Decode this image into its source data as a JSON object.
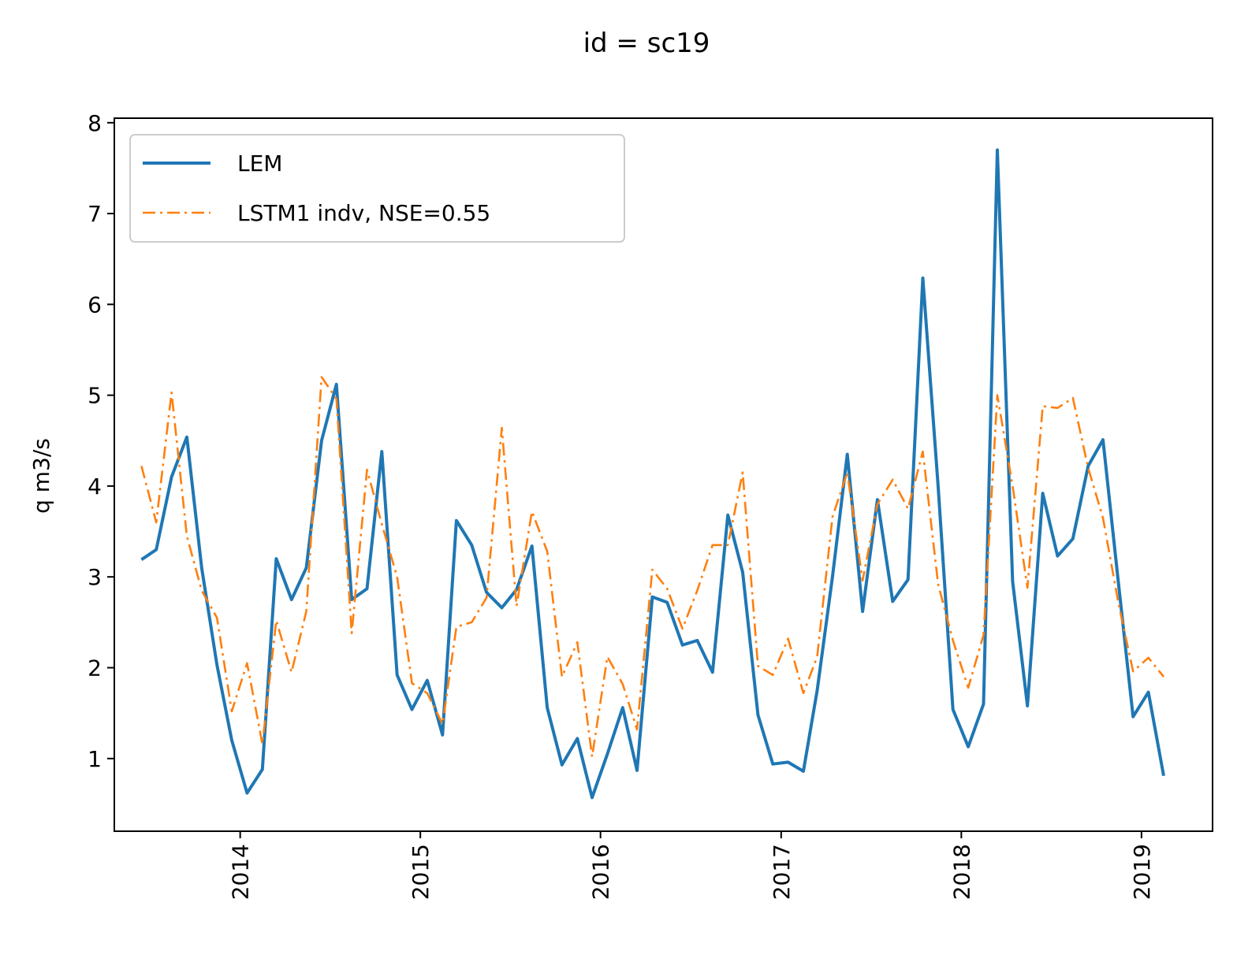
{
  "chart_data": {
    "type": "line",
    "title": "id = sc19",
    "xlabel": "",
    "ylabel": "q m3/s",
    "xlim": [
      "2013-04-21",
      "2019-05-25"
    ],
    "ylim": [
      0.2,
      8.05
    ],
    "x_ticks": [
      "2014",
      "2015",
      "2016",
      "2017",
      "2018",
      "2019"
    ],
    "y_ticks": [
      1,
      2,
      3,
      4,
      5,
      6,
      7,
      8
    ],
    "grid": false,
    "legend_position": "top-left",
    "x": [
      "2013-06",
      "2013-07",
      "2013-08",
      "2013-09",
      "2013-10",
      "2013-11",
      "2013-12",
      "2014-01",
      "2014-02",
      "2014-03",
      "2014-04",
      "2014-05",
      "2014-06",
      "2014-07",
      "2014-08",
      "2014-09",
      "2014-10",
      "2014-11",
      "2014-12",
      "2015-01",
      "2015-02",
      "2015-03",
      "2015-04",
      "2015-05",
      "2015-06",
      "2015-07",
      "2015-08",
      "2015-09",
      "2015-10",
      "2015-11",
      "2015-12",
      "2016-01",
      "2016-02",
      "2016-03",
      "2016-04",
      "2016-05",
      "2016-06",
      "2016-07",
      "2016-08",
      "2016-09",
      "2016-10",
      "2016-11",
      "2016-12",
      "2017-01",
      "2017-02",
      "2017-03",
      "2017-04",
      "2017-05",
      "2017-06",
      "2017-07",
      "2017-08",
      "2017-09",
      "2017-10",
      "2017-11",
      "2017-12",
      "2018-01",
      "2018-02",
      "2018-03",
      "2018-04",
      "2018-05",
      "2018-06",
      "2018-07",
      "2018-08",
      "2018-09",
      "2018-10",
      "2018-11",
      "2018-12",
      "2019-01",
      "2019-02"
    ],
    "series": [
      {
        "name": "LEM",
        "color": "#1f77b4",
        "style": "solid",
        "values": [
          3.19,
          3.3,
          4.1,
          4.54,
          3.1,
          2.03,
          1.2,
          0.62,
          0.88,
          3.2,
          2.75,
          3.1,
          4.5,
          5.12,
          2.75,
          2.87,
          4.38,
          1.92,
          1.54,
          1.86,
          1.26,
          3.62,
          3.35,
          2.83,
          2.66,
          2.86,
          3.34,
          1.56,
          0.93,
          1.22,
          0.57,
          1.05,
          1.56,
          0.87,
          2.78,
          2.72,
          2.25,
          2.3,
          1.95,
          3.68,
          3.05,
          1.48,
          0.94,
          0.96,
          0.86,
          1.75,
          3.0,
          4.35,
          2.62,
          3.85,
          2.73,
          2.97,
          6.29,
          4.0,
          1.54,
          1.13,
          1.6,
          7.7,
          2.95,
          1.58,
          3.92,
          3.23,
          3.42,
          4.22,
          4.51,
          2.95,
          1.46,
          1.73,
          0.81
        ]
      },
      {
        "name": "LSTM1 indv, NSE=0.55",
        "color": "#ff7f0e",
        "style": "dashdot",
        "values": [
          4.22,
          3.6,
          5.03,
          3.45,
          2.85,
          2.55,
          1.52,
          2.05,
          1.16,
          2.52,
          1.95,
          2.62,
          5.2,
          4.96,
          2.38,
          4.18,
          3.58,
          3.0,
          1.83,
          1.72,
          1.38,
          2.45,
          2.5,
          2.77,
          4.64,
          2.68,
          3.72,
          3.28,
          1.9,
          2.28,
          1.02,
          2.12,
          1.82,
          1.32,
          3.08,
          2.87,
          2.43,
          2.85,
          3.35,
          3.35,
          4.15,
          2.02,
          1.92,
          2.32,
          1.72,
          2.12,
          3.66,
          4.15,
          2.96,
          3.8,
          4.07,
          3.75,
          4.38,
          2.92,
          2.3,
          1.78,
          2.36,
          5.0,
          4.0,
          2.88,
          4.88,
          4.86,
          4.97,
          4.2,
          3.65,
          2.72,
          1.96,
          2.11,
          1.9
        ]
      }
    ]
  }
}
